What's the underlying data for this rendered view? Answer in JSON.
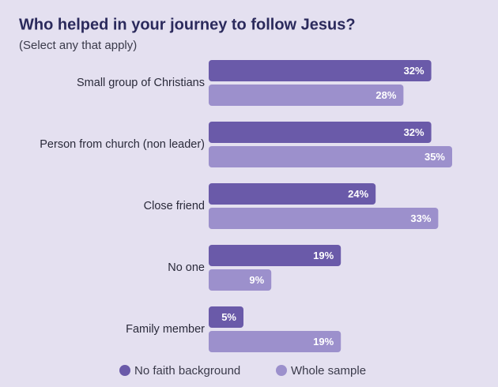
{
  "chart_data": {
    "type": "bar",
    "orientation": "horizontal",
    "title": "Who helped in your journey to follow Jesus?",
    "subtitle": "(Select any that apply)",
    "categories": [
      "Small group of Christians",
      "Person from church (non leader)",
      "Close friend",
      "No one",
      "Family member"
    ],
    "series": [
      {
        "name": "No faith background",
        "color": "#6a5aa9",
        "values": [
          32,
          32,
          24,
          19,
          5
        ],
        "value_labels": [
          "32%",
          "32%",
          "24%",
          "19%",
          "5%"
        ]
      },
      {
        "name": "Whole sample",
        "color": "#9c90cc",
        "values": [
          28,
          35,
          33,
          9,
          19
        ],
        "value_labels": [
          "28%",
          "35%",
          "33%",
          "9%",
          "19%"
        ]
      }
    ],
    "legend": "bottom"
  }
}
